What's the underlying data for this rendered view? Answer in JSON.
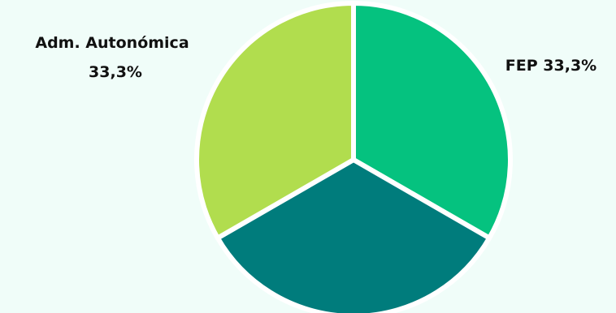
{
  "chart_data": {
    "type": "pie",
    "title": "",
    "slices": [
      {
        "label": "FEP",
        "value": 33.3,
        "value_label": "33,3%",
        "color": "#05c27f"
      },
      {
        "label": "",
        "value": 33.3,
        "value_label": "",
        "color": "#007c7c"
      },
      {
        "label": "Adm. Autonómica",
        "value": 33.3,
        "value_label": "33,3%",
        "color": "#b1dd4e"
      }
    ],
    "legend": "none"
  }
}
